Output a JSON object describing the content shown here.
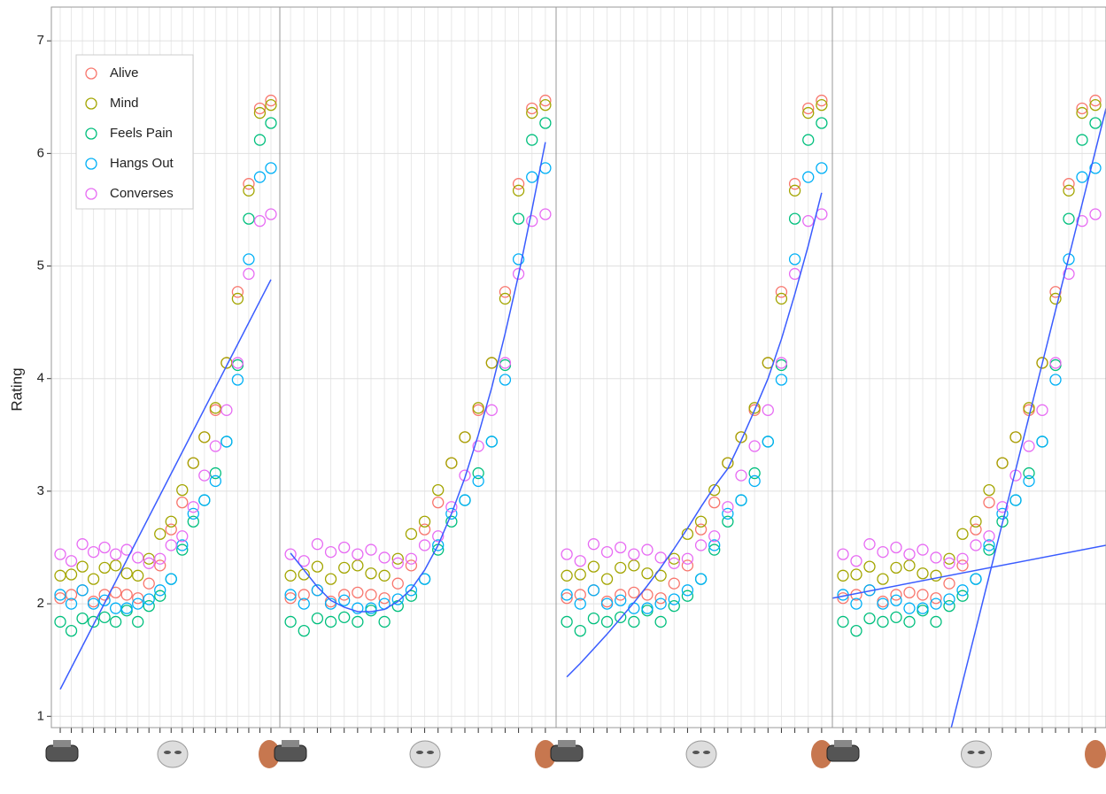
{
  "chart_data": {
    "type": "scatter",
    "y_label": "Rating",
    "x": [
      0,
      1,
      2,
      3,
      4,
      5,
      6,
      7,
      8,
      9,
      10,
      11,
      12,
      13,
      14,
      15,
      16,
      17,
      18,
      19
    ],
    "xlim": [
      -0.8,
      19.8
    ],
    "xticks": [
      0,
      1,
      2,
      3,
      4,
      5,
      6,
      7,
      8,
      9,
      10,
      11,
      12,
      13,
      14,
      15,
      16,
      17,
      18,
      19
    ],
    "ylim": [
      0.9,
      7.3
    ],
    "yticks": [
      1,
      2,
      3,
      4,
      5,
      6,
      7
    ],
    "grid": true,
    "legend": "top-left",
    "fit_color": "#3a5cff",
    "series": [
      {
        "name": "Alive",
        "color": "#f8766d",
        "values": [
          2.05,
          2.08,
          2.12,
          2.02,
          2.08,
          2.1,
          2.08,
          2.05,
          2.18,
          2.34,
          2.66,
          2.9,
          3.25,
          3.48,
          3.72,
          4.14,
          4.77,
          5.73,
          6.4,
          6.47
        ]
      },
      {
        "name": "Mind",
        "color": "#a3a500",
        "values": [
          2.25,
          2.26,
          2.33,
          2.22,
          2.32,
          2.34,
          2.27,
          2.25,
          2.4,
          2.62,
          2.73,
          3.01,
          3.25,
          3.48,
          3.74,
          4.14,
          4.71,
          5.67,
          6.36,
          6.43
        ]
      },
      {
        "name": "Feels Pain",
        "color": "#00bf7d",
        "values": [
          1.84,
          1.76,
          1.87,
          1.84,
          1.88,
          1.84,
          1.94,
          1.84,
          1.98,
          2.07,
          2.22,
          2.48,
          2.73,
          2.92,
          3.16,
          3.44,
          4.12,
          5.42,
          6.12,
          6.27
        ]
      },
      {
        "name": "Hangs Out",
        "color": "#00b0f6",
        "values": [
          2.08,
          2.0,
          2.12,
          2.0,
          2.03,
          1.96,
          1.96,
          2.0,
          2.04,
          2.12,
          2.22,
          2.52,
          2.8,
          2.92,
          3.09,
          3.44,
          3.99,
          5.06,
          5.79,
          5.87
        ]
      },
      {
        "name": "Converses",
        "color": "#e76bf3",
        "values": [
          2.44,
          2.38,
          2.53,
          2.46,
          2.5,
          2.44,
          2.48,
          2.41,
          2.36,
          2.4,
          2.52,
          2.6,
          2.86,
          3.14,
          3.4,
          3.72,
          4.14,
          4.93,
          5.4,
          5.46
        ]
      }
    ],
    "panels": [
      {
        "fits": [
          {
            "x": [
              0,
              19
            ],
            "y": [
              1.24,
              4.88
            ]
          }
        ]
      },
      {
        "fits": [
          {
            "x": [
              0,
              1,
              2,
              3,
              4,
              5,
              6,
              7,
              8,
              9,
              10,
              11,
              12,
              13,
              14,
              15,
              16,
              17,
              18,
              19
            ],
            "y": [
              2.45,
              2.3,
              2.15,
              2.03,
              1.97,
              1.93,
              1.93,
              1.95,
              2.02,
              2.13,
              2.3,
              2.52,
              2.8,
              3.12,
              3.5,
              3.92,
              4.4,
              4.92,
              5.5,
              6.1
            ]
          }
        ]
      },
      {
        "fits": [
          {
            "x": [
              0,
              1,
              2,
              3,
              4,
              5,
              6,
              7,
              8,
              9,
              10,
              11,
              12,
              13,
              14,
              15,
              16,
              17,
              18,
              19
            ],
            "y": [
              1.35,
              1.47,
              1.6,
              1.73,
              1.87,
              2.01,
              2.16,
              2.32,
              2.49,
              2.67,
              2.86,
              3.04,
              3.2,
              3.45,
              3.72,
              4.0,
              4.35,
              4.75,
              5.18,
              5.65
            ]
          }
        ]
      },
      {
        "fits": [
          {
            "x": [
              -0.8,
              19.8
            ],
            "y": [
              2.05,
              2.52
            ]
          },
          {
            "x": [
              8.15,
              19.8
            ],
            "y": [
              0.9,
              6.4
            ]
          }
        ]
      }
    ]
  }
}
